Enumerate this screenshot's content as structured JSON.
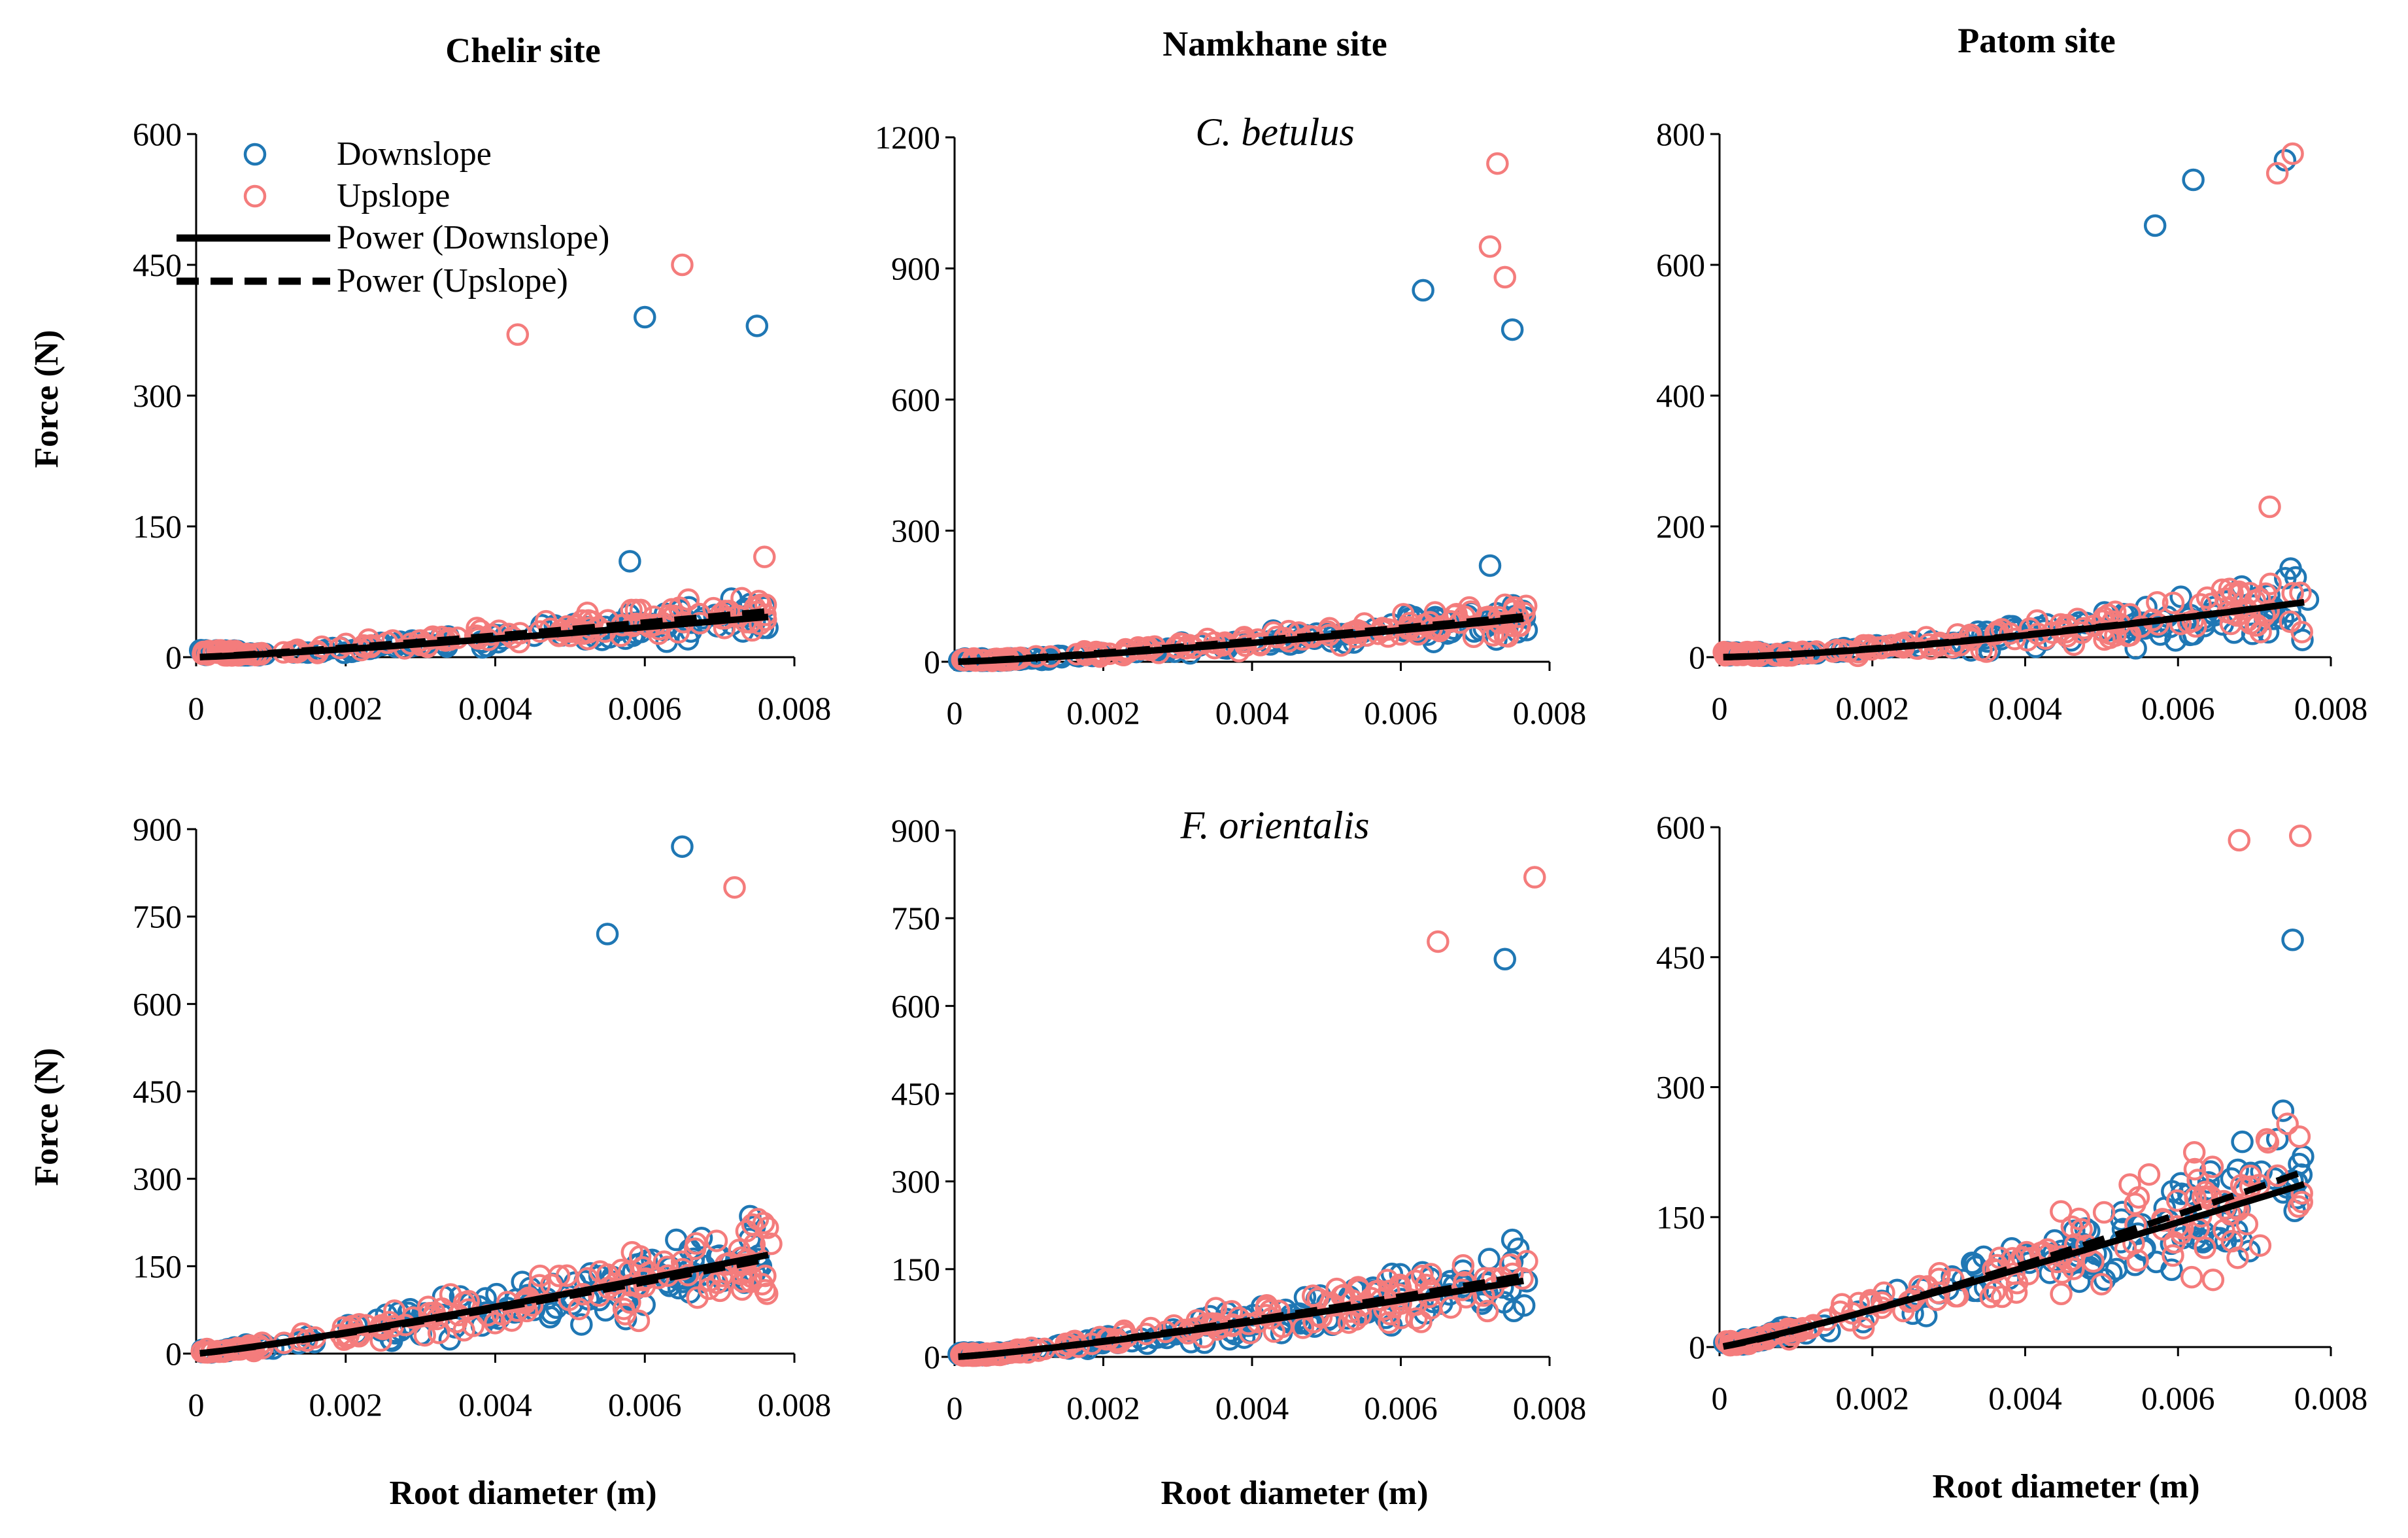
{
  "figure": {
    "columns": [
      "Chelir site",
      "Namkhane site",
      "Patom site"
    ],
    "row_species": [
      "C. betulus",
      "F. orientalis"
    ],
    "legend": {
      "downslope": "Downslope",
      "upslope": "Upslope",
      "power_downslope": "Power (Downslope)",
      "power_upslope": "Power (Upslope)"
    },
    "x_axis_title": "Root diameter (m)",
    "y_axis_title": "Force (N)",
    "colors": {
      "downslope": "#1f77b4",
      "upslope": "#f47c7c",
      "fit": "#000000"
    }
  },
  "chart_data": [
    {
      "type": "scatter",
      "site": "Chelir site",
      "row": 1,
      "species": "C. betulus",
      "xlim": [
        0,
        0.008
      ],
      "xticks": [
        0,
        0.002,
        0.004,
        0.006,
        0.008
      ],
      "ylim": [
        0,
        600
      ],
      "yticks": [
        0,
        150,
        300,
        450,
        600
      ],
      "xlabel": "Root diameter (m)",
      "ylabel": "Force (N)",
      "spread": 0.22,
      "fit": {
        "downslope": {
          "a": 16000,
          "b": 1.2
        },
        "upslope": {
          "a": 15800,
          "b": 1.17
        }
      },
      "outliers": {
        "downslope": [
          [
            0.006,
            390
          ],
          [
            0.0075,
            380
          ],
          [
            0.0058,
            110
          ]
        ],
        "upslope": [
          [
            0.0043,
            370
          ],
          [
            0.0065,
            450
          ],
          [
            0.0076,
            115
          ]
        ]
      },
      "legend": true,
      "show_xlabel": false,
      "show_ylabel": true
    },
    {
      "type": "scatter",
      "site": "Namkhane site",
      "row": 1,
      "species": "C. betulus",
      "xlim": [
        0,
        0.008
      ],
      "xticks": [
        0,
        0.002,
        0.004,
        0.006,
        0.008
      ],
      "ylim": [
        0,
        1200
      ],
      "yticks": [
        0,
        300,
        600,
        900,
        1200
      ],
      "xlabel": "Root diameter (m)",
      "ylabel": "Force (N)",
      "spread": 0.2,
      "fit": {
        "downslope": {
          "a": 48000,
          "b": 1.27
        },
        "upslope": {
          "a": 36000,
          "b": 1.2
        }
      },
      "outliers": {
        "downslope": [
          [
            0.0063,
            850
          ],
          [
            0.0072,
            220
          ],
          [
            0.0075,
            760
          ]
        ],
        "upslope": [
          [
            0.0073,
            1140
          ],
          [
            0.0072,
            950
          ],
          [
            0.0074,
            880
          ]
        ]
      },
      "legend": false,
      "show_xlabel": false,
      "show_ylabel": false
    },
    {
      "type": "scatter",
      "site": "Patom site",
      "row": 1,
      "species": "C. betulus",
      "xlim": [
        0,
        0.008
      ],
      "xticks": [
        0,
        0.002,
        0.004,
        0.006,
        0.008
      ],
      "ylim": [
        0,
        800
      ],
      "yticks": [
        0,
        200,
        400,
        600,
        800
      ],
      "xlabel": "Root diameter (m)",
      "ylabel": "Force (N)",
      "spread": 0.3,
      "fit": {
        "downslope": {
          "a": 85000,
          "b": 1.42
        },
        "upslope": {
          "a": 70000,
          "b": 1.38
        }
      },
      "outliers": {
        "downslope": [
          [
            0.0062,
            730
          ],
          [
            0.0057,
            660
          ],
          [
            0.0074,
            760
          ]
        ],
        "upslope": [
          [
            0.0075,
            770
          ],
          [
            0.0073,
            740
          ],
          [
            0.0072,
            230
          ]
        ]
      },
      "legend": false,
      "show_xlabel": false,
      "show_ylabel": false
    },
    {
      "type": "scatter",
      "site": "Chelir site",
      "row": 2,
      "species": "F. orientalis",
      "xlim": [
        0,
        0.008
      ],
      "xticks": [
        0,
        0.002,
        0.004,
        0.006,
        0.008
      ],
      "ylim": [
        0,
        900
      ],
      "yticks": [
        0,
        150,
        300,
        450,
        600,
        750,
        900
      ],
      "xlabel": "Root diameter (m)",
      "ylabel": "Force (N)",
      "spread": 0.25,
      "fit": {
        "downslope": {
          "a": 46000,
          "b": 1.15
        },
        "upslope": {
          "a": 44000,
          "b": 1.15
        }
      },
      "outliers": {
        "downslope": [
          [
            0.0065,
            870
          ],
          [
            0.0055,
            720
          ],
          [
            0.0066,
            105
          ]
        ],
        "upslope": [
          [
            0.0072,
            800
          ],
          [
            0.0073,
            110
          ],
          [
            0.0056,
            120
          ]
        ]
      },
      "legend": false,
      "show_xlabel": true,
      "show_ylabel": true
    },
    {
      "type": "scatter",
      "site": "Namkhane site",
      "row": 2,
      "species": "F. orientalis",
      "xlim": [
        0,
        0.008
      ],
      "xticks": [
        0,
        0.002,
        0.004,
        0.006,
        0.008
      ],
      "ylim": [
        0,
        900
      ],
      "yticks": [
        0,
        150,
        300,
        450,
        600,
        750,
        900
      ],
      "xlabel": "Root diameter (m)",
      "ylabel": "Force (N)",
      "spread": 0.22,
      "fit": {
        "downslope": {
          "a": 45000,
          "b": 1.2
        },
        "upslope": {
          "a": 53000,
          "b": 1.22
        }
      },
      "outliers": {
        "downslope": [
          [
            0.0037,
            30
          ],
          [
            0.0074,
            680
          ],
          [
            0.0075,
            200
          ]
        ],
        "upslope": [
          [
            0.0078,
            820
          ],
          [
            0.0065,
            710
          ],
          [
            0.0062,
            130
          ]
        ]
      },
      "legend": false,
      "show_xlabel": true,
      "show_ylabel": false
    },
    {
      "type": "scatter",
      "site": "Patom site",
      "row": 2,
      "species": "F. orientalis",
      "xlim": [
        0,
        0.008
      ],
      "xticks": [
        0,
        0.002,
        0.004,
        0.006,
        0.008
      ],
      "ylim": [
        0,
        600
      ],
      "yticks": [
        0,
        150,
        300,
        450,
        600
      ],
      "xlabel": "Root diameter (m)",
      "ylabel": "Force (N)",
      "spread": 0.22,
      "fit": {
        "downslope": {
          "a": 40000,
          "b": 1.1
        },
        "upslope": {
          "a": 55000,
          "b": 1.15
        }
      },
      "outliers": {
        "downslope": [
          [
            0.0075,
            470
          ],
          [
            0.0073,
            240
          ],
          [
            0.0064,
            190
          ]
        ],
        "upslope": [
          [
            0.0076,
            590
          ],
          [
            0.0068,
            585
          ],
          [
            0.0066,
            135
          ]
        ]
      },
      "legend": false,
      "show_xlabel": true,
      "show_ylabel": false
    }
  ]
}
